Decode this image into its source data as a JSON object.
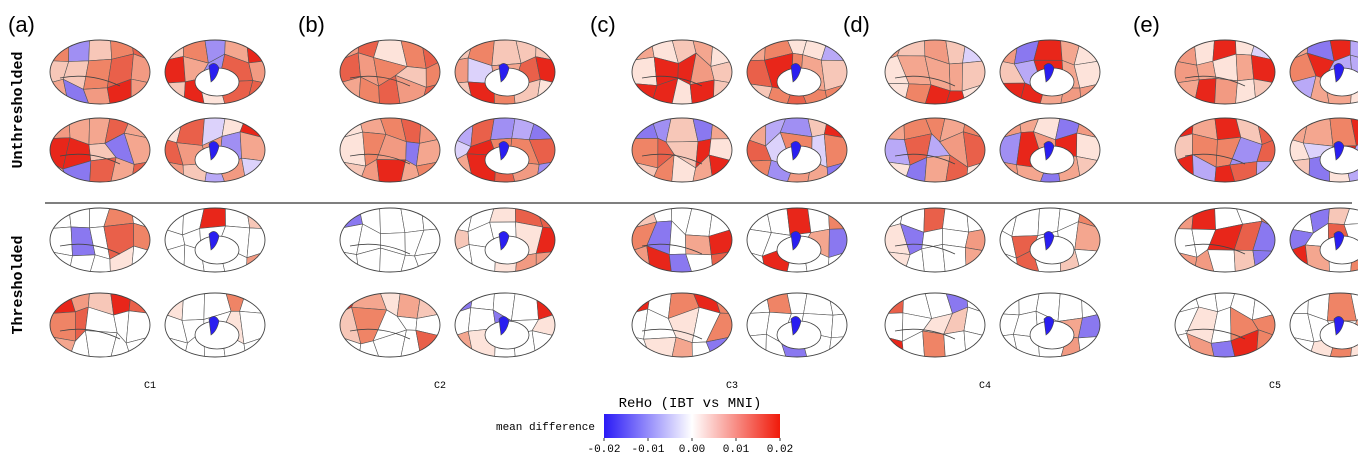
{
  "panels": [
    {
      "label": "(a)",
      "caption": "C1"
    },
    {
      "label": "(b)",
      "caption": "C2"
    },
    {
      "label": "(c)",
      "caption": "C3"
    },
    {
      "label": "(d)",
      "caption": "C4"
    },
    {
      "label": "(e)",
      "caption": "C5"
    }
  ],
  "rows": [
    "Unthresholded",
    "Thresholded"
  ],
  "colorbar": {
    "title": "ReHo (IBT vs MNI)",
    "label": "mean difference",
    "lim": [
      -0.02,
      0.02
    ],
    "ticks": [
      -0.02,
      -0.01,
      {
        "value": 0,
        "label": "0.00"
      },
      0.01,
      0.02
    ]
  }
}
